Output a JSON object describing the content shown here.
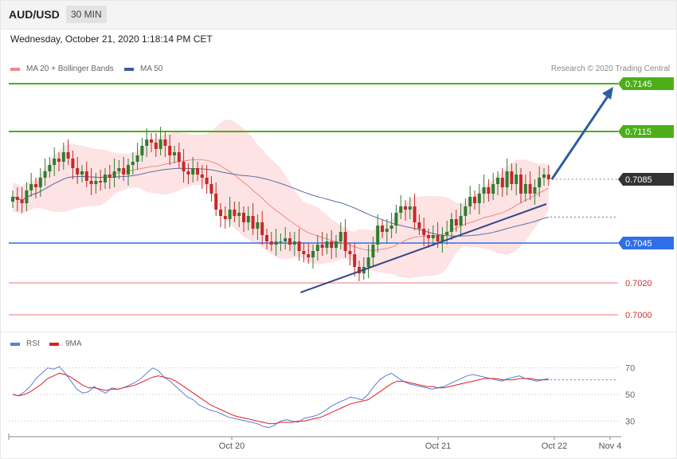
{
  "header": {
    "symbol": "AUD/USD",
    "timeframe": "30 MIN",
    "timestamp": "Wednesday, October 21, 2020 1:18:14 PM CET",
    "credit": "Research © 2020 Trading Central"
  },
  "legend": {
    "ma20": {
      "label": "MA 20 + Bollinger Bands",
      "color": "#f08a8a"
    },
    "ma50": {
      "label": "MA 50",
      "color": "#3d5c9a"
    }
  },
  "rsi_legend": {
    "rsi": {
      "label": "RSI",
      "color": "#5b7fd6"
    },
    "ma9": {
      "label": "9MA",
      "color": "#e02020"
    }
  },
  "colors": {
    "up": "#2e7d32",
    "down": "#c62828",
    "band": "#fde0e0",
    "resistance": "#4caf1a",
    "support": "#2f6fe8",
    "lower": "#f4a3a3",
    "current": "#333333",
    "arrow": "#2c5f9e"
  },
  "chart_data": [
    {
      "type": "candlestick",
      "title": "",
      "x_tick_labels": [
        "Oct 20",
        "Oct 21",
        "Oct 22",
        "Nov 4"
      ],
      "ylim": [
        0.699,
        0.715
      ],
      "levels": [
        {
          "value": 0.7145,
          "label": "0.7145",
          "kind": "resistance"
        },
        {
          "value": 0.7115,
          "label": "0.7115",
          "kind": "resistance"
        },
        {
          "value": 0.7085,
          "label": "0.7085",
          "kind": "current"
        },
        {
          "value": 0.7045,
          "label": "0.7045",
          "kind": "support"
        },
        {
          "value": 0.702,
          "label": "0.7020",
          "kind": "support"
        },
        {
          "value": 0.7,
          "label": "0.7000",
          "kind": "support"
        }
      ],
      "candles_close": [
        0.7074,
        0.7072,
        0.707,
        0.7078,
        0.7082,
        0.708,
        0.7086,
        0.709,
        0.7094,
        0.7098,
        0.7096,
        0.7102,
        0.7098,
        0.7092,
        0.7088,
        0.709,
        0.7084,
        0.7082,
        0.7084,
        0.7083,
        0.7088,
        0.7086,
        0.709,
        0.7092,
        0.7088,
        0.7094,
        0.7096,
        0.71,
        0.7106,
        0.711,
        0.7108,
        0.7104,
        0.711,
        0.7106,
        0.71,
        0.7102,
        0.7096,
        0.709,
        0.7088,
        0.7092,
        0.7088,
        0.7086,
        0.7082,
        0.7076,
        0.7066,
        0.7062,
        0.706,
        0.7066,
        0.7062,
        0.7064,
        0.7058,
        0.7062,
        0.7054,
        0.7058,
        0.705,
        0.7046,
        0.7044,
        0.7046,
        0.7046,
        0.7048,
        0.7044,
        0.7046,
        0.704,
        0.7038,
        0.7036,
        0.704,
        0.7044,
        0.7042,
        0.7046,
        0.7042,
        0.7046,
        0.7052,
        0.704,
        0.7038,
        0.703,
        0.7026,
        0.703,
        0.7036,
        0.7044,
        0.7056,
        0.7052,
        0.7054,
        0.7056,
        0.7064,
        0.7068,
        0.7066,
        0.7068,
        0.7058,
        0.7054,
        0.705,
        0.7048,
        0.705,
        0.7046,
        0.705,
        0.7052,
        0.706,
        0.7056,
        0.7062,
        0.7068,
        0.7074,
        0.707,
        0.7076,
        0.708,
        0.7076,
        0.7082,
        0.7086,
        0.708,
        0.709,
        0.7082,
        0.7088,
        0.7076,
        0.7082,
        0.7076,
        0.708,
        0.7086,
        0.7088,
        0.7085
      ],
      "ma20_shown": true,
      "ma50_shown": true,
      "bollinger_shown": true,
      "trendline": {
        "from_close_index": 63,
        "to_close_index": 117
      },
      "arrow_target": 0.7145
    },
    {
      "type": "line",
      "title": "",
      "ylim": [
        20,
        80
      ],
      "y_tick_labels": [
        "70",
        "50",
        "30"
      ],
      "y_ticks": [
        70,
        50,
        30
      ],
      "series": [
        {
          "name": "RSI",
          "values": [
            50,
            49,
            52,
            56,
            62,
            66,
            70,
            69,
            71,
            66,
            60,
            54,
            51,
            52,
            56,
            53,
            51,
            55,
            54,
            55,
            57,
            59,
            62,
            66,
            70,
            68,
            63,
            60,
            56,
            52,
            48,
            46,
            42,
            40,
            38,
            37,
            35,
            33,
            32,
            31,
            30,
            29,
            28,
            26,
            25,
            27,
            30,
            31,
            30,
            29,
            32,
            33,
            34,
            36,
            39,
            42,
            44,
            46,
            48,
            47,
            46,
            50,
            56,
            61,
            64,
            66,
            63,
            60,
            58,
            57,
            56,
            55,
            54,
            55,
            56,
            58,
            60,
            62,
            64,
            65,
            64,
            63,
            62,
            61,
            60,
            62,
            63,
            64,
            62,
            61,
            60,
            61,
            62
          ],
          "color": "#5b7fd6"
        },
        {
          "name": "9MA",
          "values": [
            50,
            49,
            50,
            52,
            55,
            58,
            62,
            64,
            66,
            65,
            63,
            60,
            57,
            55,
            55,
            54,
            53,
            54,
            54,
            55,
            56,
            57,
            59,
            61,
            63,
            64,
            63,
            62,
            60,
            57,
            54,
            51,
            48,
            45,
            42,
            40,
            38,
            36,
            34,
            33,
            32,
            31,
            30,
            29,
            28,
            28,
            29,
            29,
            29,
            30,
            30,
            31,
            32,
            33,
            35,
            37,
            39,
            41,
            43,
            44,
            45,
            46,
            49,
            52,
            55,
            58,
            60,
            60,
            59,
            58,
            57,
            56,
            56,
            55,
            55,
            56,
            57,
            58,
            59,
            60,
            61,
            62,
            62,
            62,
            61,
            61,
            61,
            62,
            62,
            62,
            61,
            61,
            61
          ],
          "color": "#e02020"
        }
      ]
    }
  ]
}
